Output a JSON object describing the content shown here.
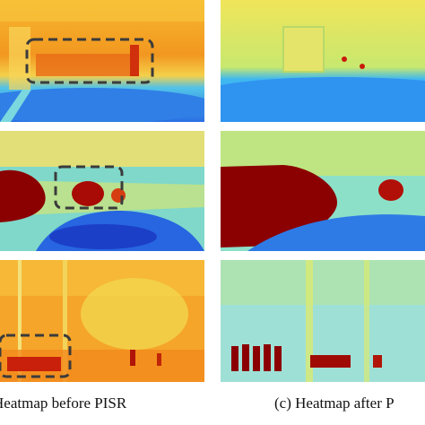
{
  "figure": {
    "caption_b": "Heatmap before PISR",
    "caption_c": "(c) Heatmap after P"
  },
  "colors": {
    "hot": "#8b0000",
    "warm": "#f6a11c",
    "yellow": "#f4e43a",
    "cool": "#6fd6d0",
    "cold": "#2b86e8",
    "box_outline": "#3b3b3b"
  }
}
